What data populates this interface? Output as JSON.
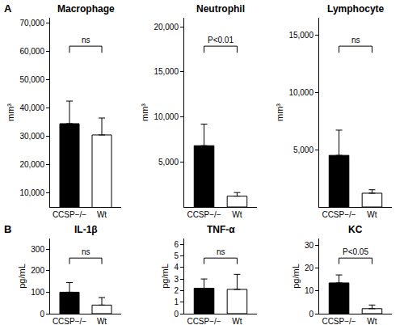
{
  "chart_data": [
    {
      "type": "bar",
      "panel": "A",
      "title": "Macrophage",
      "y_label": "mm³",
      "categories": [
        "CCSP−/−",
        "Wt"
      ],
      "values": [
        34500,
        30500
      ],
      "errors": [
        8000,
        6000
      ],
      "colors": [
        "#000000",
        "#ffffff"
      ],
      "ylim": [
        5000,
        72000
      ],
      "yticks": [
        {
          "value": 10000,
          "label": "10,000"
        },
        {
          "value": 20000,
          "label": "20,000"
        },
        {
          "value": 30000,
          "label": "30,000"
        },
        {
          "value": 40000,
          "label": "40,000"
        },
        {
          "value": 50000,
          "label": "50,000"
        },
        {
          "value": 60000,
          "label": "60,000"
        },
        {
          "value": 70000,
          "label": "70,000"
        }
      ],
      "comparison": "ns"
    },
    {
      "type": "bar",
      "title": "Neutrophil",
      "y_label": "mm³",
      "categories": [
        "CCSP−/−",
        "Wt"
      ],
      "values": [
        6800,
        1200
      ],
      "errors": [
        2400,
        400
      ],
      "colors": [
        "#000000",
        "#ffffff"
      ],
      "ylim": [
        0,
        21000
      ],
      "yticks": [
        {
          "value": 5000,
          "label": "5,000"
        },
        {
          "value": 10000,
          "label": "10,000"
        },
        {
          "value": 15000,
          "label": "15,000"
        },
        {
          "value": 20000,
          "label": "20,000"
        }
      ],
      "comparison": "P<0.01"
    },
    {
      "type": "bar",
      "title": "Lymphocyte",
      "y_label": "mm³",
      "categories": [
        "CCSP−/−",
        "Wt"
      ],
      "values": [
        4500,
        1200
      ],
      "errors": [
        2200,
        300
      ],
      "colors": [
        "#000000",
        "#ffffff"
      ],
      "ylim": [
        0,
        16500
      ],
      "yticks": [
        {
          "value": 5000,
          "label": "5,000"
        },
        {
          "value": 10000,
          "label": "10,000"
        },
        {
          "value": 15000,
          "label": "15,000"
        }
      ],
      "comparison": "ns"
    },
    {
      "type": "bar",
      "panel": "B",
      "title": "IL-1β",
      "y_label": "pg/mL",
      "categories": [
        "CCSP−/−",
        "Wt"
      ],
      "values": [
        100,
        40
      ],
      "errors": [
        45,
        35
      ],
      "colors": [
        "#000000",
        "#ffffff"
      ],
      "ylim": [
        0,
        350
      ],
      "yticks": [
        0,
        100,
        200,
        300
      ],
      "comparison": "ns"
    },
    {
      "type": "bar",
      "title": "TNF-α",
      "y_label": "pg/mL",
      "categories": [
        "CCSP−/−",
        "Wt"
      ],
      "values": [
        2.2,
        2.1
      ],
      "errors": [
        0.8,
        1.3
      ],
      "colors": [
        "#000000",
        "#ffffff"
      ],
      "ylim": [
        0,
        6.5
      ],
      "yticks": [
        0,
        1,
        2,
        3,
        4,
        5,
        6
      ],
      "comparison": "ns"
    },
    {
      "type": "bar",
      "title": "KC",
      "y_label": "pg/mL",
      "categories": [
        "CCSP−/−",
        "Wt"
      ],
      "values": [
        13.5,
        2.2
      ],
      "errors": [
        3.5,
        1.6
      ],
      "colors": [
        "#000000",
        "#ffffff"
      ],
      "ylim": [
        0,
        33
      ],
      "yticks": [
        0,
        10,
        20,
        30
      ],
      "comparison": "P<0.05"
    }
  ]
}
